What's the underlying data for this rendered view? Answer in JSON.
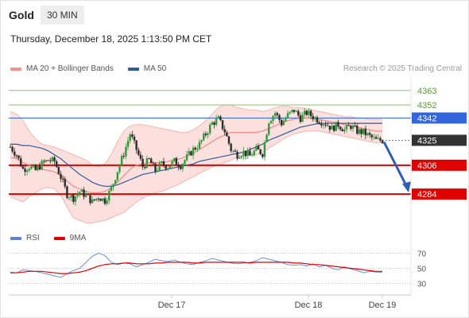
{
  "header": {
    "symbol": "Gold",
    "timeframe": "30 MIN"
  },
  "datetime": "Thursday, December 18, 2025 1:13:50 PM CET",
  "copyright": "Research © 2025 Trading Central",
  "legend_main": [
    {
      "label": "MA 20 + Bollinger Bands",
      "color": "#f4918c"
    },
    {
      "label": "MA 50",
      "color": "#2e5b9a"
    }
  ],
  "legend_rsi": [
    {
      "label": "RSI",
      "color": "#5b84d6"
    },
    {
      "label": "9MA",
      "color": "#e00000"
    }
  ],
  "colors": {
    "resistance_green": "#8dc26f",
    "pivot_blue": "#3366dd",
    "support_red": "#e00000",
    "current_dark": "#333333",
    "arrow_blue": "#2f5fb5"
  },
  "chart_data": [
    {
      "type": "candlestick",
      "title": "Gold",
      "ylim": [
        4245,
        4375
      ],
      "y_price_at_top": 4375,
      "x_dates": [
        "Dec 17",
        "Dec 18",
        "Dec 19"
      ],
      "levels": [
        {
          "value": 4363,
          "label": "4363",
          "kind": "resistance"
        },
        {
          "value": 4352,
          "label": "4352",
          "kind": "resistance"
        },
        {
          "value": 4342,
          "label": "4342",
          "kind": "pivot"
        },
        {
          "value": 4325,
          "label": "4325",
          "kind": "current"
        },
        {
          "value": 4306,
          "label": "4306",
          "kind": "support"
        },
        {
          "value": 4284,
          "label": "4284",
          "kind": "support"
        }
      ],
      "price_path": [
        4320,
        4314,
        4303,
        4305,
        4302,
        4307,
        4310,
        4309,
        4297,
        4284,
        4281,
        4286,
        4283,
        4278,
        4282,
        4279,
        4288,
        4302,
        4315,
        4330,
        4318,
        4305,
        4310,
        4302,
        4307,
        4305,
        4309,
        4306,
        4312,
        4318,
        4322,
        4330,
        4338,
        4341,
        4332,
        4318,
        4314,
        4316,
        4313,
        4318,
        4315,
        4340,
        4346,
        4338,
        4344,
        4348,
        4342,
        4346,
        4343,
        4340,
        4338,
        4334,
        4337,
        4333,
        4336,
        4332,
        4331,
        4328,
        4325,
        4325
      ],
      "ma20_path": [
        4312,
        4311,
        4308,
        4306,
        4304,
        4303,
        4302,
        4301,
        4298,
        4294,
        4290,
        4288,
        4286,
        4285,
        4285,
        4286,
        4289,
        4293,
        4298,
        4303,
        4306,
        4307,
        4308,
        4308,
        4308,
        4309,
        4310,
        4311,
        4313,
        4315,
        4318,
        4321,
        4324,
        4327,
        4329,
        4331,
        4331,
        4331,
        4331,
        4331,
        4332,
        4334,
        4336,
        4338,
        4340,
        4341,
        4342,
        4342,
        4342,
        4341,
        4340,
        4339,
        4338,
        4337,
        4336,
        4335,
        4334,
        4333,
        4332,
        4332
      ],
      "bb_upper_path": [
        4347,
        4345,
        4340,
        4332,
        4326,
        4322,
        4321,
        4320,
        4318,
        4316,
        4314,
        4312,
        4310,
        4306,
        4305,
        4307,
        4314,
        4324,
        4332,
        4336,
        4337,
        4337,
        4336,
        4335,
        4334,
        4333,
        4332,
        4331,
        4331,
        4333,
        4336,
        4340,
        4345,
        4350,
        4352,
        4352,
        4350,
        4349,
        4348,
        4348,
        4347,
        4348,
        4350,
        4351,
        4351,
        4350,
        4350,
        4349,
        4348,
        4347,
        4346,
        4345,
        4344,
        4343,
        4343,
        4342,
        4342,
        4341,
        4341,
        4341
      ],
      "bb_lower_path": [
        4282,
        4280,
        4278,
        4282,
        4285,
        4288,
        4289,
        4288,
        4283,
        4274,
        4266,
        4264,
        4262,
        4262,
        4263,
        4264,
        4266,
        4268,
        4270,
        4274,
        4278,
        4281,
        4283,
        4285,
        4286,
        4288,
        4290,
        4292,
        4295,
        4297,
        4300,
        4302,
        4305,
        4306,
        4308,
        4310,
        4312,
        4313,
        4314,
        4314,
        4316,
        4319,
        4322,
        4325,
        4328,
        4330,
        4331,
        4332,
        4332,
        4332,
        4331,
        4330,
        4329,
        4328,
        4327,
        4326,
        4325,
        4324,
        4323,
        4323
      ],
      "ma50_path": [
        4322,
        4322,
        4321,
        4321,
        4320,
        4319,
        4317,
        4314,
        4311,
        4307,
        4303,
        4299,
        4296,
        4293,
        4291,
        4290,
        4290,
        4291,
        4293,
        4295,
        4297,
        4299,
        4300,
        4301,
        4302,
        4303,
        4304,
        4305,
        4306,
        4307,
        4309,
        4310,
        4311,
        4312,
        4313,
        4314,
        4315,
        4316,
        4318,
        4320,
        4322,
        4325,
        4327,
        4329,
        4331,
        4333,
        4335,
        4336,
        4337,
        4338,
        4338,
        4338,
        4338,
        4338,
        4338,
        4338,
        4338,
        4338,
        4338,
        4338
      ],
      "forecast_arrow": {
        "from": 4325,
        "to": 4284
      }
    },
    {
      "type": "line",
      "title": "RSI",
      "ylim": [
        20,
        80
      ],
      "y_ticks": [
        "70",
        "50",
        "30"
      ],
      "series": [
        {
          "name": "RSI",
          "values": [
            45,
            44,
            48,
            47,
            46,
            44,
            42,
            40,
            38,
            43,
            47,
            50,
            58,
            66,
            70,
            67,
            58,
            55,
            57,
            56,
            52,
            55,
            58,
            62,
            60,
            59,
            61,
            58,
            56,
            55,
            58,
            60,
            63,
            61,
            59,
            57,
            56,
            57,
            58,
            60,
            64,
            62,
            60,
            58,
            55,
            54,
            55,
            53,
            56,
            52,
            54,
            50,
            48,
            52,
            49,
            47,
            44,
            46,
            45,
            45
          ]
        },
        {
          "name": "9MA",
          "values": [
            44,
            44,
            45,
            46,
            46,
            46,
            45,
            44,
            43,
            43,
            44,
            45,
            47,
            50,
            53,
            55,
            56,
            56,
            57,
            57,
            56,
            56,
            56,
            57,
            57,
            58,
            58,
            58,
            58,
            57,
            57,
            58,
            58,
            58,
            58,
            58,
            58,
            58,
            57,
            58,
            58,
            58,
            58,
            58,
            58,
            57,
            57,
            56,
            55,
            55,
            54,
            53,
            52,
            51,
            50,
            49,
            48,
            47,
            46,
            46
          ]
        }
      ]
    }
  ]
}
